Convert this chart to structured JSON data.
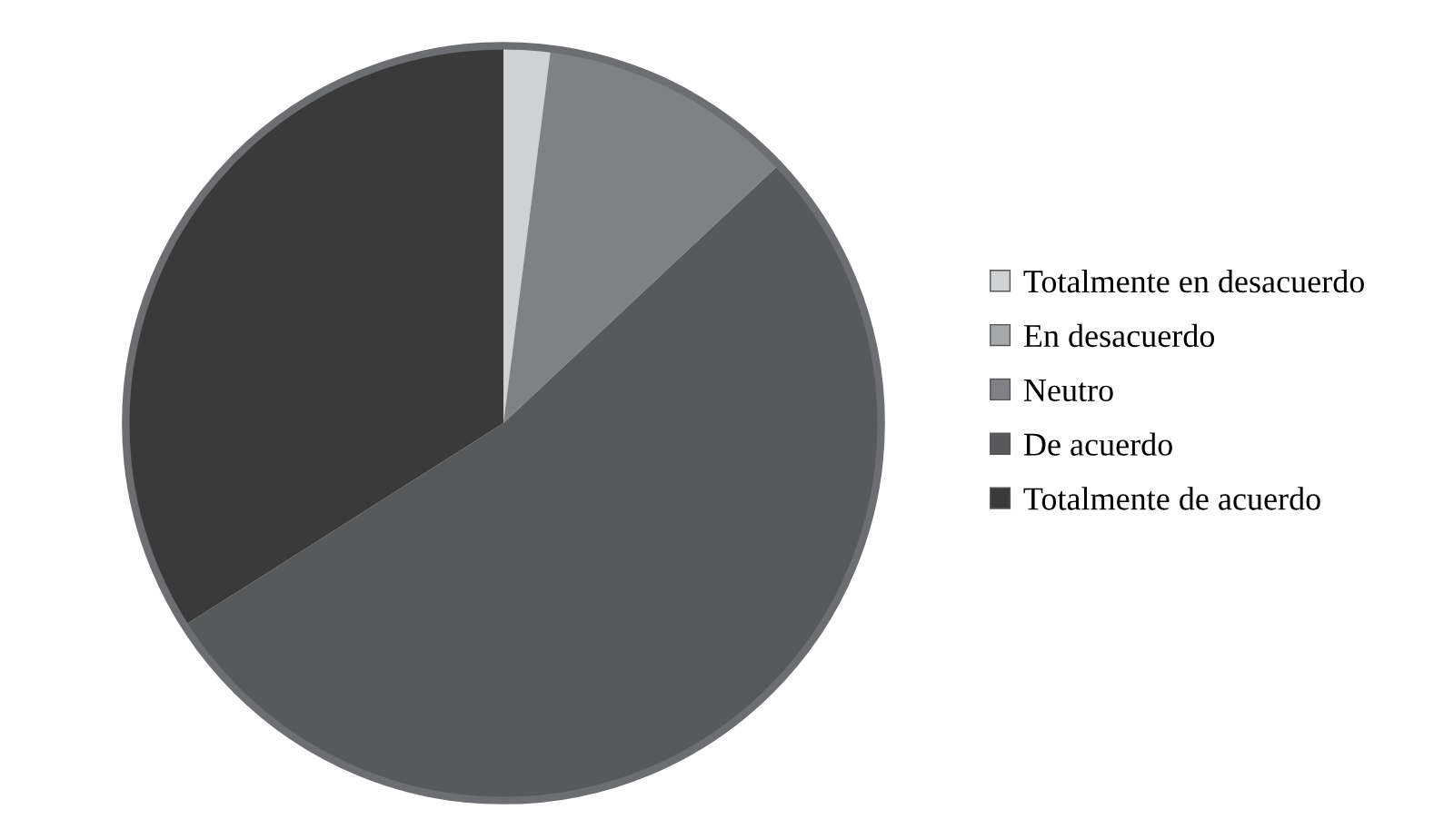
{
  "chart_data": {
    "type": "pie",
    "categories": [
      "Totalmente en desacuerdo",
      "En desacuerdo",
      "Neutro",
      "De acuerdo",
      "Totalmente de acuerdo"
    ],
    "values": [
      2,
      0,
      11,
      53,
      34
    ],
    "colors": [
      "#d0d1d3",
      "#a6a7a9",
      "#808184",
      "#58595b",
      "#3a3a3b"
    ],
    "legend": "right"
  }
}
